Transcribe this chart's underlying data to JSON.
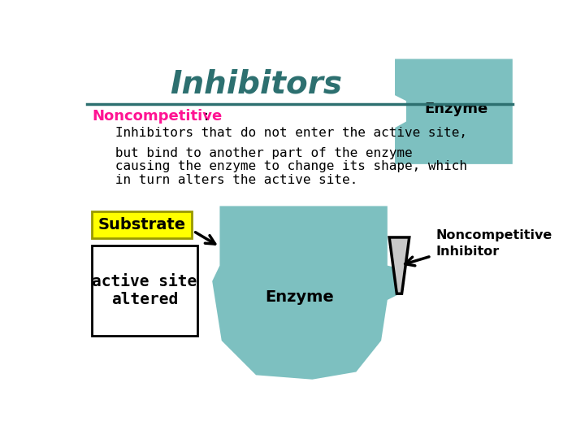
{
  "title": "Inhibitors",
  "title_color": "#2d7070",
  "title_fontsize": 28,
  "bg_color": "#ffffff",
  "border_color": "#4a9090",
  "enzyme_color": "#7dc0c0",
  "noncompetitive_label": "Noncompetitive",
  "noncompetitive_color": "#ff1493",
  "line1": "   Inhibitors that do not enter the active site,",
  "line2": "   but bind to another part of the enzyme",
  "line3": "   causing the enzyme to change its shape, which",
  "line4": "   in turn alters the active site.",
  "substrate_label": "Substrate",
  "substrate_bg": "#ffff00",
  "active_site_label": "active site\naltered",
  "enzyme_label": "Enzyme",
  "enzyme_label2": "Enzyme",
  "nc_inhibitor_label": "Noncompetitive\nInhibitor",
  "text_color": "#000000",
  "inhibitor_fill": "#c8c8c8"
}
